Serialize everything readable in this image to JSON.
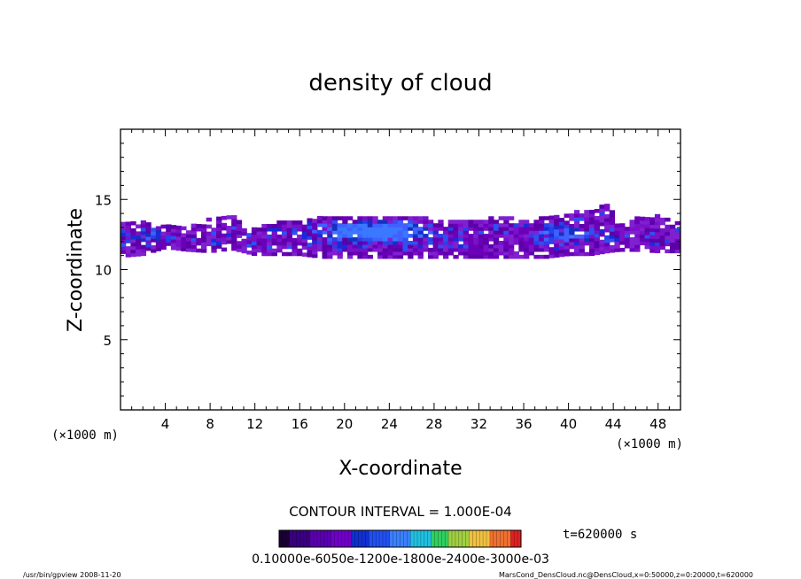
{
  "chart_data": {
    "type": "heatmap",
    "title": "density of cloud",
    "xlabel": "X-coordinate",
    "ylabel": "Z-coordinate",
    "x_unit": "(×1000 m)",
    "xlim": [
      0,
      50
    ],
    "ylim": [
      0,
      20
    ],
    "x_ticks": [
      4,
      8,
      12,
      16,
      20,
      24,
      28,
      32,
      36,
      40,
      44,
      48
    ],
    "y_ticks": [
      5,
      10,
      15
    ],
    "contour_interval_text": "CONTOUR INTERVAL = 1.000E-04",
    "time_text": "t=620000 s",
    "colorbar_labels_text": "0.10000e-6050e-1200e-1800e-2400e-3000e-03",
    "colorbar_range": [
      0.0,
      0.0007
    ],
    "colors": [
      "#1a0033",
      "#3a0080",
      "#5a00b0",
      "#7000c8",
      "#1030d0",
      "#2050f0",
      "#3a80ff",
      "#20c0e0",
      "#30d060",
      "#a0d040",
      "#f0c040",
      "#f07030",
      "#e02020"
    ],
    "cloud_band": [
      {
        "x": 0.5,
        "z_bottom": 10.9,
        "z_top": 13.2
      },
      {
        "x": 2.0,
        "z_bottom": 11.0,
        "z_top": 13.3
      },
      {
        "x": 4.0,
        "z_bottom": 11.5,
        "z_top": 13.0
      },
      {
        "x": 6.0,
        "z_bottom": 11.3,
        "z_top": 12.9
      },
      {
        "x": 8.0,
        "z_bottom": 11.2,
        "z_top": 13.6
      },
      {
        "x": 10.0,
        "z_bottom": 11.4,
        "z_top": 13.7
      },
      {
        "x": 12.0,
        "z_bottom": 11.0,
        "z_top": 12.8
      },
      {
        "x": 14.0,
        "z_bottom": 11.0,
        "z_top": 13.4
      },
      {
        "x": 16.0,
        "z_bottom": 11.0,
        "z_top": 13.5
      },
      {
        "x": 18.0,
        "z_bottom": 10.8,
        "z_top": 13.6
      },
      {
        "x": 20.0,
        "z_bottom": 10.8,
        "z_top": 13.7
      },
      {
        "x": 22.0,
        "z_bottom": 10.8,
        "z_top": 13.8
      },
      {
        "x": 24.0,
        "z_bottom": 10.8,
        "z_top": 13.8
      },
      {
        "x": 26.0,
        "z_bottom": 10.8,
        "z_top": 13.7
      },
      {
        "x": 28.0,
        "z_bottom": 10.8,
        "z_top": 13.5
      },
      {
        "x": 30.0,
        "z_bottom": 10.8,
        "z_top": 13.4
      },
      {
        "x": 32.0,
        "z_bottom": 10.8,
        "z_top": 13.5
      },
      {
        "x": 34.0,
        "z_bottom": 10.8,
        "z_top": 13.6
      },
      {
        "x": 36.0,
        "z_bottom": 10.8,
        "z_top": 13.5
      },
      {
        "x": 38.0,
        "z_bottom": 10.8,
        "z_top": 13.6
      },
      {
        "x": 40.0,
        "z_bottom": 11.0,
        "z_top": 13.9
      },
      {
        "x": 42.0,
        "z_bottom": 11.0,
        "z_top": 14.2
      },
      {
        "x": 43.5,
        "z_bottom": 11.2,
        "z_top": 14.6
      },
      {
        "x": 44.5,
        "z_bottom": 11.3,
        "z_top": 13.0
      },
      {
        "x": 46.0,
        "z_bottom": 11.3,
        "z_top": 13.6
      },
      {
        "x": 48.0,
        "z_bottom": 11.2,
        "z_top": 13.8
      },
      {
        "x": 49.8,
        "z_bottom": 11.2,
        "z_top": 13.2
      }
    ],
    "core": [
      {
        "x": 22.5,
        "z": 12.6,
        "rx": 5.5,
        "rz": 0.8,
        "value": 0.0003
      },
      {
        "x": 39.5,
        "z": 12.4,
        "rx": 3.0,
        "rz": 0.7,
        "value": 0.0002
      },
      {
        "x": 2.5,
        "z": 12.2,
        "rx": 2.0,
        "rz": 0.6,
        "value": 0.00015
      }
    ]
  },
  "footer": {
    "left": "/usr/bin/gpview   2008-11-20",
    "right": "MarsCond_DensCloud.nc@DensCloud,x=0:50000,z=0:20000,t=620000"
  }
}
